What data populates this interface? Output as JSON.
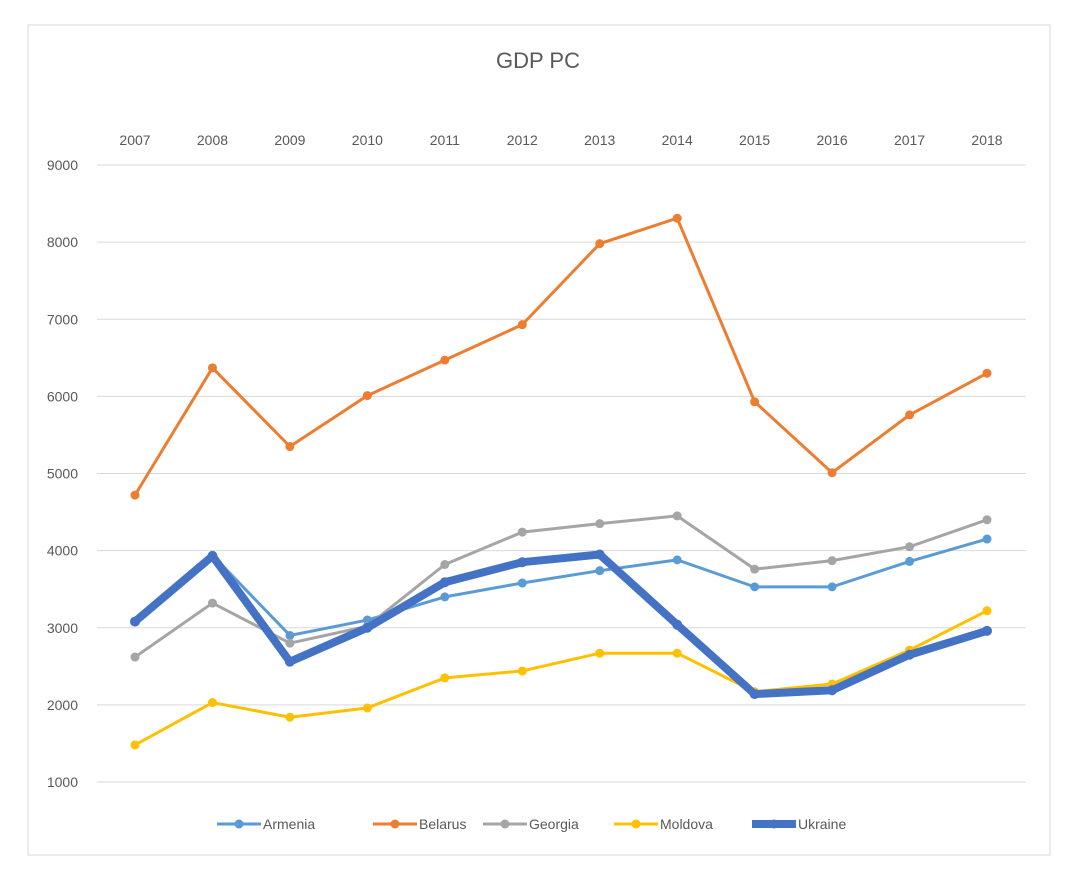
{
  "chart_data": {
    "type": "line",
    "title": "GDP PC",
    "xlabel": "",
    "ylabel": "",
    "categories": [
      "2007",
      "2008",
      "2009",
      "2010",
      "2011",
      "2012",
      "2013",
      "2014",
      "2015",
      "2016",
      "2017",
      "2018"
    ],
    "ylim": [
      1000,
      9000
    ],
    "yticks": [
      1000,
      2000,
      3000,
      4000,
      5000,
      6000,
      7000,
      8000,
      9000
    ],
    "grid": true,
    "legend_position": "bottom",
    "x_axis_position": "top",
    "series": [
      {
        "name": "Armenia",
        "color": "#5B9BD5",
        "width": 3,
        "values": [
          3080,
          3940,
          2900,
          3100,
          3400,
          3580,
          3740,
          3880,
          3530,
          3530,
          3860,
          4150
        ]
      },
      {
        "name": "Belarus",
        "color": "#ED7D31",
        "width": 3,
        "values": [
          4720,
          6370,
          5350,
          6010,
          6470,
          6930,
          7980,
          8310,
          5930,
          5010,
          5760,
          6300
        ]
      },
      {
        "name": "Georgia",
        "color": "#A5A5A5",
        "width": 3,
        "values": [
          2620,
          3320,
          2800,
          3020,
          3820,
          4240,
          4350,
          4450,
          3760,
          3870,
          4050,
          4400
        ]
      },
      {
        "name": "Moldova",
        "color": "#FFC000",
        "width": 3,
        "values": [
          1480,
          2030,
          1840,
          1960,
          2350,
          2440,
          2670,
          2670,
          2170,
          2270,
          2710,
          3220
        ]
      },
      {
        "name": "Ukraine",
        "color": "#4472C4",
        "width": 8,
        "values": [
          3080,
          3930,
          2560,
          3000,
          3590,
          3850,
          3950,
          3040,
          2140,
          2190,
          2650,
          2960
        ]
      }
    ]
  }
}
